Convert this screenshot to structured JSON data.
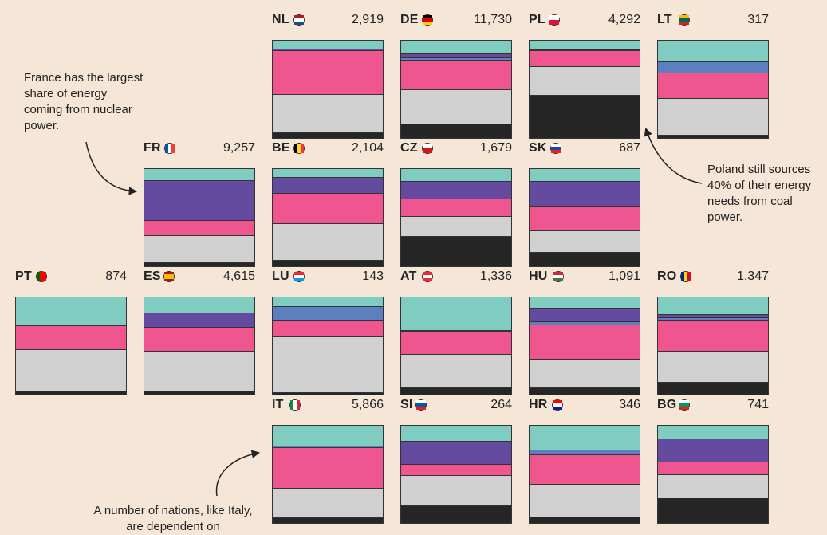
{
  "colors": {
    "hydro": "#7fcdc1",
    "nuclear": "#654ba0",
    "wind": "#5c7fbf",
    "renewables": "#ef5690",
    "gas": "#d0d0d0",
    "coal": "#262626"
  },
  "annotations": {
    "france": "France has the largest share of energy coming from nuclear power.",
    "poland": "Poland still sources 40% of their energy needs from coal power.",
    "italy": "A number of nations, like Italy, are dependent on"
  },
  "chart_data": {
    "type": "stacked-bar-grid",
    "unit": "energy",
    "countries": [
      {
        "code": "NL",
        "value": "2,919",
        "flag": {
          "dir": "h",
          "colors": [
            "#ae1c28",
            "#ffffff",
            "#21468b"
          ]
        },
        "shares": {
          "hydro": 7,
          "nuclear": 1,
          "renewables": 34,
          "gas": 30,
          "coal": 4
        }
      },
      {
        "code": "DE",
        "value": "11,730",
        "flag": {
          "dir": "h",
          "colors": [
            "#000000",
            "#dd0000",
            "#ffce00"
          ]
        },
        "shares": {
          "hydro": 11,
          "nuclear": 3,
          "wind": 2,
          "renewables": 24,
          "gas": 28,
          "coal": 12
        }
      },
      {
        "code": "PL",
        "value": "4,292",
        "flag": {
          "dir": "h",
          "colors": [
            "#ffffff",
            "#dc143c"
          ]
        },
        "shares": {
          "hydro": 9,
          "wind": 1,
          "renewables": 15,
          "gas": 27,
          "coal": 40
        }
      },
      {
        "code": "LT",
        "value": "317",
        "flag": {
          "dir": "h",
          "colors": [
            "#fdb913",
            "#006a44",
            "#c1272d"
          ]
        },
        "shares": {
          "hydro": 22,
          "wind": 11,
          "renewables": 26,
          "gas": 37,
          "coal": 3
        }
      },
      {
        "code": "FR",
        "value": "9,257",
        "flag": {
          "dir": "v",
          "colors": [
            "#0055a4",
            "#ffffff",
            "#ef4135"
          ]
        },
        "shares": {
          "hydro": 12,
          "nuclear": 40,
          "renewables": 15,
          "gas": 27,
          "coal": 3
        }
      },
      {
        "code": "BE",
        "value": "2,104",
        "flag": {
          "dir": "v",
          "colors": [
            "#000000",
            "#fdda24",
            "#ef3340"
          ]
        },
        "shares": {
          "hydro": 8,
          "nuclear": 15,
          "renewables": 29,
          "gas": 35,
          "coal": 5
        }
      },
      {
        "code": "CZ",
        "value": "1,679",
        "flag": {
          "dir": "h",
          "colors": [
            "#ffffff",
            "#d7141a"
          ]
        },
        "shares": {
          "hydro": 12,
          "nuclear": 17,
          "renewables": 17,
          "gas": 19,
          "coal": 28
        }
      },
      {
        "code": "SK",
        "value": "687",
        "flag": {
          "dir": "h",
          "colors": [
            "#ffffff",
            "#0b4ea2",
            "#ee1c25"
          ]
        },
        "shares": {
          "hydro": 12,
          "nuclear": 23,
          "renewables": 23,
          "gas": 20,
          "coal": 13
        }
      },
      {
        "code": "PT",
        "value": "874",
        "flag": {
          "dir": "v",
          "colors": [
            "#006600",
            "#ff0000",
            "#ff0000"
          ]
        },
        "shares": {
          "hydro": 29,
          "renewables": 24,
          "gas": 41,
          "coal": 3
        }
      },
      {
        "code": "ES",
        "value": "4,615",
        "flag": {
          "dir": "h",
          "colors": [
            "#aa151b",
            "#f1bf00",
            "#f1bf00",
            "#aa151b"
          ]
        },
        "shares": {
          "hydro": 16,
          "nuclear": 14,
          "renewables": 24,
          "gas": 40,
          "coal": 3
        }
      },
      {
        "code": "LU",
        "value": "143",
        "flag": {
          "dir": "h",
          "colors": [
            "#ed2939",
            "#ffffff",
            "#00a1de"
          ]
        },
        "shares": {
          "hydro": 10,
          "wind": 14,
          "renewables": 17,
          "gas": 56,
          "coal": 1
        }
      },
      {
        "code": "AT",
        "value": "1,336",
        "flag": {
          "dir": "h",
          "colors": [
            "#ed2939",
            "#ffffff",
            "#ed2939"
          ]
        },
        "shares": {
          "hydro": 32,
          "nuclear": 1,
          "renewables": 22,
          "gas": 32,
          "coal": 7
        }
      },
      {
        "code": "HU",
        "value": "1,091",
        "flag": {
          "dir": "h",
          "colors": [
            "#ce2939",
            "#ffffff",
            "#477050"
          ]
        },
        "shares": {
          "hydro": 11,
          "wind": 3,
          "nuclear": 13,
          "renewables": 33,
          "gas": 28,
          "coal": 6
        }
      },
      {
        "code": "RO",
        "value": "1,347",
        "flag": {
          "dir": "v",
          "colors": [
            "#002b7f",
            "#fcd116",
            "#ce1126"
          ]
        },
        "shares": {
          "hydro": 16,
          "nuclear": 3,
          "wind": 2,
          "renewables": 29,
          "gas": 29,
          "coal": 11
        }
      },
      {
        "code": "IT",
        "value": "5,866",
        "flag": {
          "dir": "v",
          "colors": [
            "#009246",
            "#ffffff",
            "#ce2b37"
          ]
        },
        "shares": {
          "hydro": 21,
          "wind": 2,
          "renewables": 42,
          "gas": 30,
          "coal": 5
        }
      },
      {
        "code": "SI",
        "value": "264",
        "flag": {
          "dir": "h",
          "colors": [
            "#ffffff",
            "#005da4",
            "#ed1c24"
          ]
        },
        "shares": {
          "hydro": 16,
          "nuclear": 23,
          "renewables": 11,
          "gas": 30,
          "coal": 16
        }
      },
      {
        "code": "HR",
        "value": "346",
        "flag": {
          "dir": "h",
          "colors": [
            "#ff0000",
            "#ffffff",
            "#171796"
          ]
        },
        "shares": {
          "hydro": 25,
          "wind": 5,
          "renewables": 30,
          "gas": 33,
          "coal": 5
        }
      },
      {
        "code": "BG",
        "value": "741",
        "flag": {
          "dir": "h",
          "colors": [
            "#ffffff",
            "#00966e",
            "#d62612"
          ]
        },
        "shares": {
          "hydro": 14,
          "nuclear": 24,
          "renewables": 13,
          "gas": 24,
          "coal": 25
        }
      }
    ],
    "order": [
      "hydro",
      "nuclear",
      "wind",
      "renewables",
      "gas",
      "coal"
    ]
  }
}
